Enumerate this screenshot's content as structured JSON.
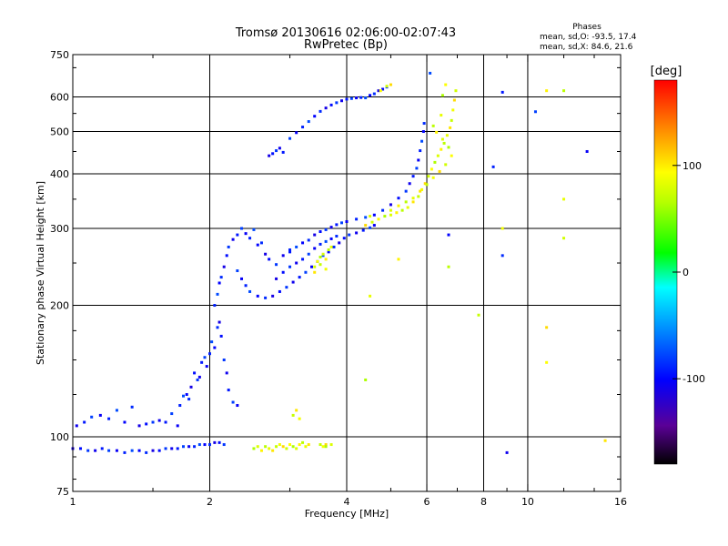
{
  "chart_data": {
    "type": "scatter",
    "title": "Tromsø 20130616 02:06:00-02:07:43",
    "subtitle": "RwPretec (Bp)",
    "xlabel": "Frequency [MHz]",
    "ylabel": "Stationary phase Virtual Height [km]",
    "x_scale": "log",
    "y_scale": "log",
    "xlim": [
      1,
      16
    ],
    "ylim": [
      75,
      750
    ],
    "x_ticks": [
      1,
      2,
      4,
      6,
      8,
      10,
      16
    ],
    "y_ticks": [
      75,
      100,
      200,
      300,
      400,
      500,
      600,
      750
    ],
    "x_grid": [
      2,
      4,
      6,
      8,
      10
    ],
    "y_grid": [
      100,
      200,
      300,
      400,
      500,
      600
    ],
    "phase_stats": {
      "heading": "Phases",
      "o_line": "mean, sd,O:  -93.5, 17.4",
      "x_line": "mean, sd,X:  84.6, 21.6"
    },
    "colorbar": {
      "label": "[deg]",
      "range": [
        -180,
        180
      ],
      "ticks": [
        100,
        0,
        -100
      ],
      "tick_labels": [
        "100",
        "0",
        "-100"
      ]
    },
    "series": [
      {
        "mode": "O",
        "phase_mean": -93.5,
        "phase_sd": 17.4,
        "points": [
          [
            1.0,
            94
          ],
          [
            1.04,
            94
          ],
          [
            1.08,
            93
          ],
          [
            1.12,
            93
          ],
          [
            1.16,
            94
          ],
          [
            1.2,
            93
          ],
          [
            1.25,
            93
          ],
          [
            1.3,
            92
          ],
          [
            1.35,
            93
          ],
          [
            1.4,
            93
          ],
          [
            1.45,
            92
          ],
          [
            1.5,
            93
          ],
          [
            1.55,
            93
          ],
          [
            1.6,
            94
          ],
          [
            1.65,
            94
          ],
          [
            1.7,
            94
          ],
          [
            1.75,
            95
          ],
          [
            1.8,
            95
          ],
          [
            1.85,
            95
          ],
          [
            1.9,
            96
          ],
          [
            1.95,
            96
          ],
          [
            2.0,
            96
          ],
          [
            2.05,
            97
          ],
          [
            2.1,
            97
          ],
          [
            2.15,
            96
          ],
          [
            1.02,
            106
          ],
          [
            1.06,
            108
          ],
          [
            1.1,
            111
          ],
          [
            1.15,
            112
          ],
          [
            1.2,
            110
          ],
          [
            1.25,
            115
          ],
          [
            1.3,
            108
          ],
          [
            1.35,
            117
          ],
          [
            1.4,
            106
          ],
          [
            1.45,
            107
          ],
          [
            1.5,
            108
          ],
          [
            1.55,
            109
          ],
          [
            1.6,
            108
          ],
          [
            1.65,
            113
          ],
          [
            1.7,
            106
          ],
          [
            1.72,
            118
          ],
          [
            1.75,
            124
          ],
          [
            1.78,
            125
          ],
          [
            1.8,
            122
          ],
          [
            1.82,
            130
          ],
          [
            1.85,
            140
          ],
          [
            1.88,
            135
          ],
          [
            1.9,
            137
          ],
          [
            1.92,
            148
          ],
          [
            1.95,
            152
          ],
          [
            1.97,
            145
          ],
          [
            2.0,
            155
          ],
          [
            2.02,
            165
          ],
          [
            2.05,
            160
          ],
          [
            2.08,
            178
          ],
          [
            2.1,
            183
          ],
          [
            2.12,
            170
          ],
          [
            2.15,
            150
          ],
          [
            2.18,
            140
          ],
          [
            2.2,
            128
          ],
          [
            2.25,
            120
          ],
          [
            2.3,
            118
          ],
          [
            2.05,
            200
          ],
          [
            2.08,
            212
          ],
          [
            2.1,
            225
          ],
          [
            2.12,
            232
          ],
          [
            2.15,
            245
          ],
          [
            2.18,
            260
          ],
          [
            2.2,
            272
          ],
          [
            2.25,
            283
          ],
          [
            2.3,
            290
          ],
          [
            2.35,
            300
          ],
          [
            2.4,
            292
          ],
          [
            2.45,
            285
          ],
          [
            2.5,
            298
          ],
          [
            2.55,
            275
          ],
          [
            2.6,
            278
          ],
          [
            2.65,
            262
          ],
          [
            2.7,
            255
          ],
          [
            2.8,
            248
          ],
          [
            2.9,
            260
          ],
          [
            3.0,
            265
          ],
          [
            2.3,
            240
          ],
          [
            2.35,
            230
          ],
          [
            2.4,
            222
          ],
          [
            2.45,
            215
          ],
          [
            2.55,
            210
          ],
          [
            2.65,
            208
          ],
          [
            2.75,
            210
          ],
          [
            2.85,
            215
          ],
          [
            2.95,
            220
          ],
          [
            3.05,
            226
          ],
          [
            3.15,
            232
          ],
          [
            3.25,
            238
          ],
          [
            3.35,
            245
          ],
          [
            3.45,
            252
          ],
          [
            3.55,
            260
          ],
          [
            3.65,
            265
          ],
          [
            3.75,
            272
          ],
          [
            3.85,
            278
          ],
          [
            3.95,
            285
          ],
          [
            4.05,
            290
          ],
          [
            4.2,
            293
          ],
          [
            4.35,
            297
          ],
          [
            4.5,
            301
          ],
          [
            4.6,
            305
          ],
          [
            3.0,
            268
          ],
          [
            3.1,
            272
          ],
          [
            3.2,
            278
          ],
          [
            3.3,
            282
          ],
          [
            3.4,
            290
          ],
          [
            3.5,
            295
          ],
          [
            3.6,
            298
          ],
          [
            3.7,
            302
          ],
          [
            3.8,
            306
          ],
          [
            3.9,
            309
          ],
          [
            4.0,
            311
          ],
          [
            4.2,
            315
          ],
          [
            4.4,
            318
          ],
          [
            4.6,
            322
          ],
          [
            4.8,
            330
          ],
          [
            5.0,
            340
          ],
          [
            5.2,
            352
          ],
          [
            5.4,
            365
          ],
          [
            5.5,
            380
          ],
          [
            5.6,
            395
          ],
          [
            5.7,
            412
          ],
          [
            5.75,
            430
          ],
          [
            5.8,
            452
          ],
          [
            5.85,
            475
          ],
          [
            5.9,
            500
          ],
          [
            5.92,
            522
          ],
          [
            2.8,
            230
          ],
          [
            2.9,
            238
          ],
          [
            3.0,
            245
          ],
          [
            3.1,
            250
          ],
          [
            3.2,
            255
          ],
          [
            3.3,
            262
          ],
          [
            3.4,
            270
          ],
          [
            3.5,
            276
          ],
          [
            3.6,
            280
          ],
          [
            3.7,
            284
          ],
          [
            3.8,
            288
          ],
          [
            2.7,
            440
          ],
          [
            2.75,
            445
          ],
          [
            2.8,
            452
          ],
          [
            2.85,
            458
          ],
          [
            2.9,
            448
          ],
          [
            3.0,
            482
          ],
          [
            3.1,
            497
          ],
          [
            3.2,
            512
          ],
          [
            3.3,
            527
          ],
          [
            3.4,
            542
          ],
          [
            3.5,
            556
          ],
          [
            3.6,
            566
          ],
          [
            3.7,
            575
          ],
          [
            3.8,
            582
          ],
          [
            3.9,
            588
          ],
          [
            4.0,
            593
          ],
          [
            4.1,
            595
          ],
          [
            4.2,
            597
          ],
          [
            4.3,
            598
          ],
          [
            4.4,
            597
          ],
          [
            4.5,
            605
          ],
          [
            4.6,
            610
          ],
          [
            4.7,
            620
          ],
          [
            4.8,
            625
          ],
          [
            4.9,
            632
          ],
          [
            9.0,
            92
          ],
          [
            8.8,
            615
          ],
          [
            10.4,
            555
          ],
          [
            13.5,
            450
          ],
          [
            8.4,
            415
          ],
          [
            6.1,
            680
          ],
          [
            6.7,
            290
          ],
          [
            8.8,
            260
          ]
        ]
      },
      {
        "mode": "X",
        "phase_mean": 84.6,
        "phase_sd": 21.6,
        "points": [
          [
            2.5,
            94
          ],
          [
            2.55,
            95
          ],
          [
            2.6,
            93
          ],
          [
            2.65,
            95
          ],
          [
            2.7,
            94
          ],
          [
            2.75,
            93
          ],
          [
            2.8,
            95
          ],
          [
            2.85,
            96
          ],
          [
            2.9,
            95
          ],
          [
            2.95,
            94
          ],
          [
            3.0,
            96
          ],
          [
            3.05,
            95
          ],
          [
            3.1,
            94
          ],
          [
            3.15,
            96
          ],
          [
            3.2,
            97
          ],
          [
            3.25,
            95
          ],
          [
            3.3,
            96
          ],
          [
            3.5,
            96
          ],
          [
            3.55,
            95
          ],
          [
            3.6,
            96
          ],
          [
            3.4,
            245
          ],
          [
            3.45,
            252
          ],
          [
            3.5,
            258
          ],
          [
            3.55,
            262
          ],
          [
            3.6,
            255
          ],
          [
            3.65,
            268
          ],
          [
            3.7,
            272
          ],
          [
            3.4,
            238
          ],
          [
            3.5,
            248
          ],
          [
            3.6,
            242
          ],
          [
            4.4,
            305
          ],
          [
            4.55,
            310
          ],
          [
            4.7,
            315
          ],
          [
            4.85,
            320
          ],
          [
            5.0,
            322
          ],
          [
            5.15,
            326
          ],
          [
            5.3,
            330
          ],
          [
            5.45,
            335
          ],
          [
            5.6,
            345
          ],
          [
            5.75,
            355
          ],
          [
            5.85,
            368
          ],
          [
            5.95,
            380
          ],
          [
            6.05,
            395
          ],
          [
            6.15,
            410
          ],
          [
            6.25,
            425
          ],
          [
            6.35,
            440
          ],
          [
            6.45,
            455
          ],
          [
            6.55,
            470
          ],
          [
            6.65,
            490
          ],
          [
            6.75,
            510
          ],
          [
            6.8,
            530
          ],
          [
            6.85,
            560
          ],
          [
            6.9,
            590
          ],
          [
            6.95,
            620
          ],
          [
            6.6,
            640
          ],
          [
            6.5,
            605
          ],
          [
            5.0,
            330
          ],
          [
            5.2,
            338
          ],
          [
            5.4,
            345
          ],
          [
            5.6,
            352
          ],
          [
            5.8,
            365
          ],
          [
            6.0,
            378
          ],
          [
            6.2,
            392
          ],
          [
            6.4,
            405
          ],
          [
            6.6,
            420
          ],
          [
            6.8,
            440
          ],
          [
            6.7,
            460
          ],
          [
            6.5,
            480
          ],
          [
            6.3,
            498
          ],
          [
            6.2,
            515
          ],
          [
            6.45,
            545
          ],
          [
            3.1,
            115
          ],
          [
            3.05,
            112
          ],
          [
            3.15,
            110
          ],
          [
            5.0,
            640
          ],
          [
            4.9,
            635
          ],
          [
            4.75,
            620
          ],
          [
            3.6,
            95
          ],
          [
            3.7,
            96
          ],
          [
            11.0,
            620
          ],
          [
            12.0,
            620
          ],
          [
            12.0,
            350
          ],
          [
            14.8,
            98
          ],
          [
            7.8,
            190
          ],
          [
            8.8,
            300
          ],
          [
            11.0,
            178
          ],
          [
            12.0,
            285
          ],
          [
            11.0,
            148
          ],
          [
            4.4,
            135
          ],
          [
            4.5,
            320
          ],
          [
            5.2,
            255
          ],
          [
            6.7,
            245
          ],
          [
            4.5,
            210
          ]
        ]
      }
    ]
  }
}
